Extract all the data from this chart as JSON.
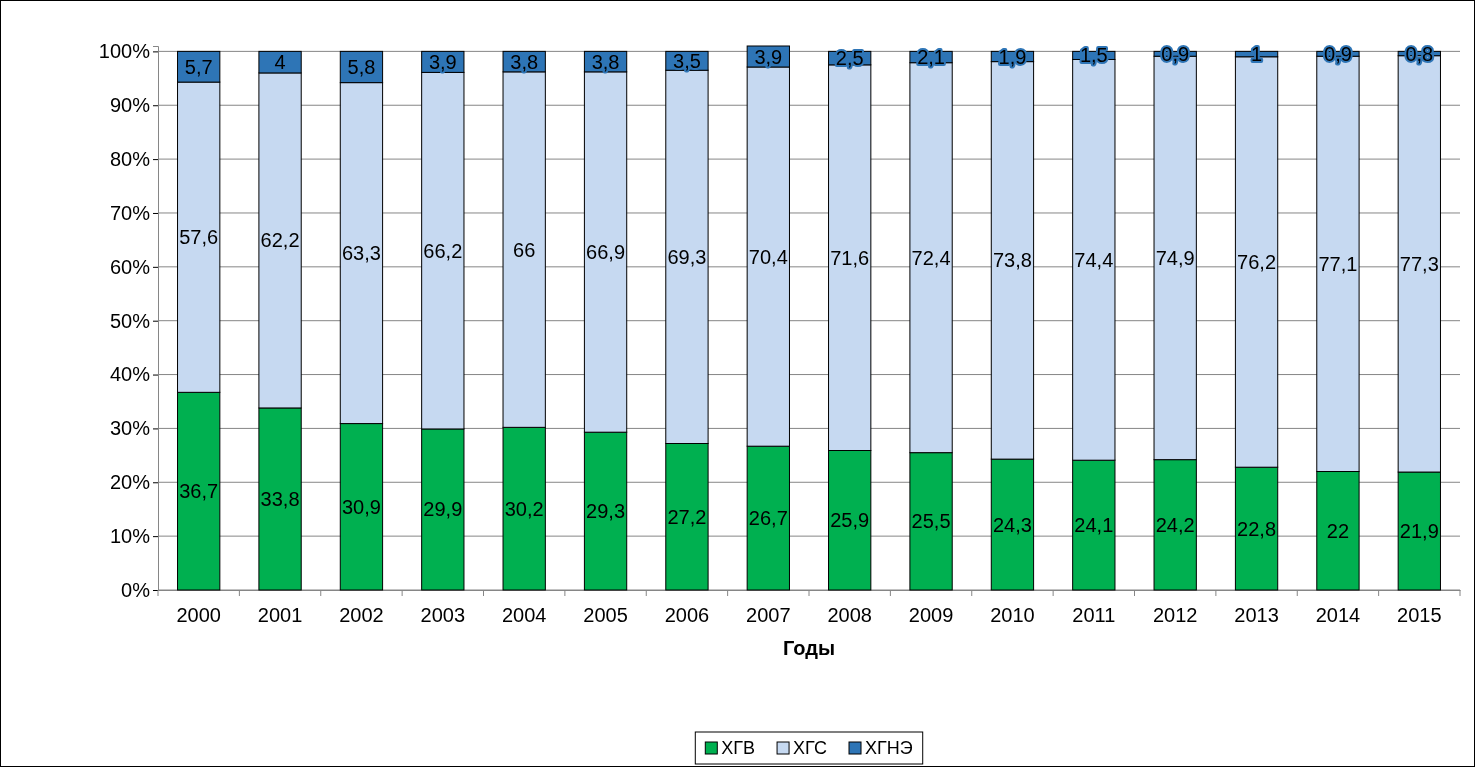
{
  "chart_data": {
    "type": "bar",
    "stacked": true,
    "xlabel": "Годы",
    "categories": [
      "2000",
      "2001",
      "2002",
      "2003",
      "2004",
      "2005",
      "2006",
      "2007",
      "2008",
      "2009",
      "2010",
      "2011",
      "2012",
      "2013",
      "2014",
      "2015"
    ],
    "ylim": [
      0,
      101
    ],
    "yticks": [
      {
        "value": 0,
        "label": "0%"
      },
      {
        "value": 10,
        "label": "10%"
      },
      {
        "value": 20,
        "label": "20%"
      },
      {
        "value": 30,
        "label": "30%"
      },
      {
        "value": 40,
        "label": "40%"
      },
      {
        "value": 50,
        "label": "50%"
      },
      {
        "value": 60,
        "label": "60%"
      },
      {
        "value": 70,
        "label": "70%"
      },
      {
        "value": 80,
        "label": "80%"
      },
      {
        "value": 90,
        "label": "90%"
      },
      {
        "value": 100,
        "label": "100%"
      }
    ],
    "grid": "y",
    "legend": "bottom",
    "series": [
      {
        "name": "ХГВ",
        "color": "#00b050",
        "values": [
          36.7,
          33.8,
          30.9,
          29.9,
          30.2,
          29.3,
          27.2,
          26.7,
          25.9,
          25.5,
          24.3,
          24.1,
          24.2,
          22.8,
          22,
          21.9
        ],
        "value_labels": [
          "36,7",
          "33,8",
          "30,9",
          "29,9",
          "30,2",
          "29,3",
          "27,2",
          "26,7",
          "25,9",
          "25,5",
          "24,3",
          "24,1",
          "24,2",
          "22,8",
          "22",
          "21,9"
        ]
      },
      {
        "name": "ХГС",
        "color": "#c6d9f1",
        "values": [
          57.6,
          62.2,
          63.3,
          66.2,
          66,
          66.9,
          69.3,
          70.4,
          71.6,
          72.4,
          73.8,
          74.4,
          74.9,
          76.2,
          77.1,
          77.3
        ],
        "value_labels": [
          "57,6",
          "62,2",
          "63,3",
          "66,2",
          "66",
          "66,9",
          "69,3",
          "70,4",
          "71,6",
          "72,4",
          "73,8",
          "74,4",
          "74,9",
          "76,2",
          "77,1",
          "77,3"
        ]
      },
      {
        "name": "ХГНЭ",
        "color": "#2e75b6",
        "values": [
          5.7,
          4,
          5.8,
          3.9,
          3.8,
          3.8,
          3.5,
          3.9,
          2.5,
          2.1,
          1.9,
          1.5,
          0.9,
          1,
          0.9,
          0.8
        ],
        "value_labels": [
          "5,7",
          "4",
          "5,8",
          "3,9",
          "3,8",
          "3,8",
          "3,5",
          "3,9",
          "2,5",
          "2,1",
          "1,9",
          "1,5",
          "0,9",
          "1",
          "0,9",
          "0,8"
        ]
      }
    ]
  }
}
